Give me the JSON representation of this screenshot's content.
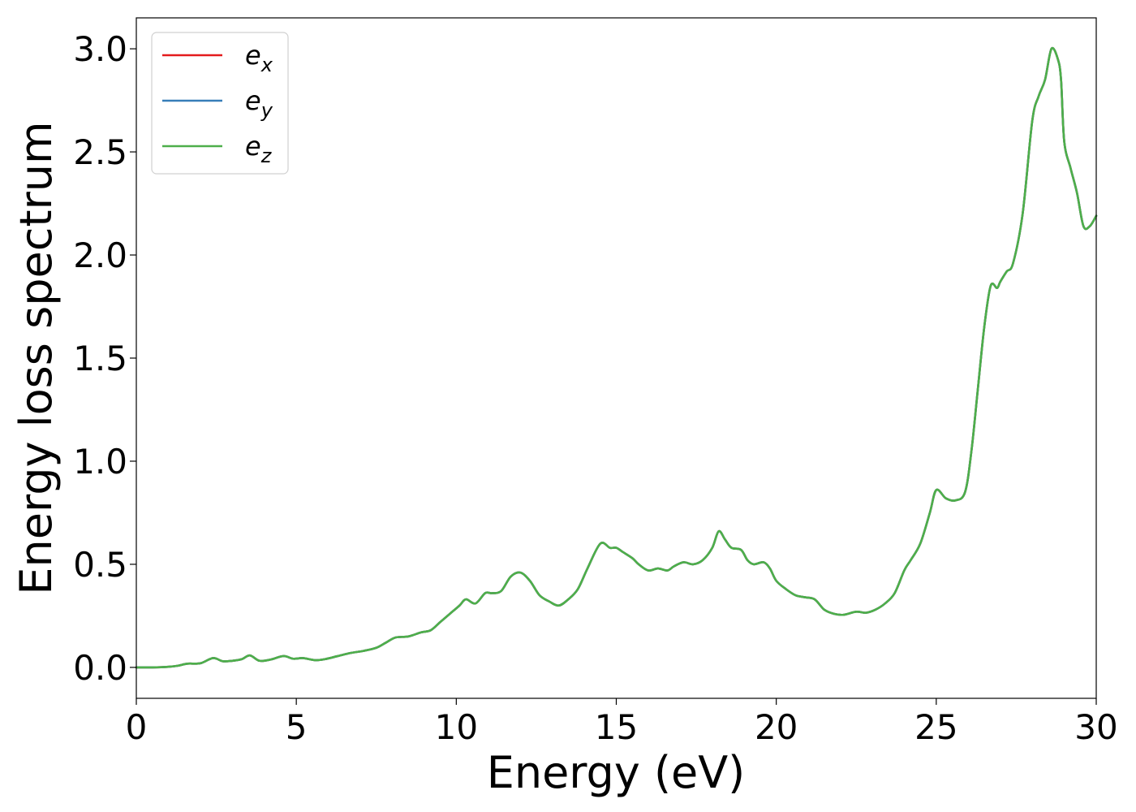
{
  "chart_data": {
    "type": "line",
    "title": "",
    "xlabel": "Energy (eV)",
    "ylabel": "Energy loss spectrum",
    "xlim": [
      0,
      30
    ],
    "ylim": [
      -0.15,
      3.15
    ],
    "xticks": [
      0,
      5,
      10,
      15,
      20,
      25,
      30
    ],
    "xtick_labels": [
      "0",
      "5",
      "10",
      "15",
      "20",
      "25",
      "30"
    ],
    "yticks": [
      0.0,
      0.5,
      1.0,
      1.5,
      2.0,
      2.5,
      3.0
    ],
    "ytick_labels": [
      "0.0",
      "0.5",
      "1.0",
      "1.5",
      "2.0",
      "2.5",
      "3.0"
    ],
    "grid": false,
    "legend": {
      "placement": "top-left"
    },
    "x": [
      0,
      0.5,
      1.0,
      1.3,
      1.6,
      2.0,
      2.4,
      2.7,
      3.0,
      3.3,
      3.55,
      3.85,
      4.2,
      4.6,
      4.9,
      5.2,
      5.6,
      5.9,
      6.3,
      6.7,
      7.1,
      7.5,
      7.8,
      8.1,
      8.5,
      8.9,
      9.2,
      9.5,
      9.8,
      10.1,
      10.3,
      10.6,
      10.9,
      11.1,
      11.4,
      11.7,
      12.0,
      12.3,
      12.6,
      12.9,
      13.2,
      13.5,
      13.8,
      14.1,
      14.5,
      14.8,
      15.0,
      15.2,
      15.5,
      15.7,
      16.0,
      16.3,
      16.6,
      16.8,
      17.1,
      17.4,
      17.7,
      18.0,
      18.2,
      18.4,
      18.6,
      18.9,
      19.1,
      19.3,
      19.6,
      19.8,
      20.0,
      20.3,
      20.6,
      20.9,
      21.2,
      21.5,
      21.8,
      22.1,
      22.5,
      22.8,
      23.1,
      23.4,
      23.7,
      24.0,
      24.2,
      24.5,
      24.8,
      25.0,
      25.3,
      25.6,
      25.9,
      26.1,
      26.3,
      26.5,
      26.7,
      26.9,
      27.0,
      27.2,
      27.4,
      27.7,
      28.0,
      28.2,
      28.4,
      28.6,
      28.8,
      28.9,
      29.0,
      29.2,
      29.4,
      29.6,
      29.8,
      30.0
    ],
    "series": [
      {
        "name": "e_x",
        "color": "#e41a1c",
        "values": [
          0,
          0,
          0.003,
          0.008,
          0.018,
          0.02,
          0.045,
          0.03,
          0.032,
          0.04,
          0.058,
          0.032,
          0.038,
          0.055,
          0.042,
          0.045,
          0.035,
          0.04,
          0.055,
          0.07,
          0.08,
          0.095,
          0.12,
          0.145,
          0.15,
          0.17,
          0.18,
          0.22,
          0.26,
          0.3,
          0.33,
          0.31,
          0.36,
          0.36,
          0.37,
          0.44,
          0.46,
          0.42,
          0.35,
          0.32,
          0.3,
          0.33,
          0.38,
          0.48,
          0.6,
          0.58,
          0.58,
          0.56,
          0.53,
          0.5,
          0.47,
          0.48,
          0.47,
          0.49,
          0.51,
          0.5,
          0.52,
          0.58,
          0.66,
          0.62,
          0.58,
          0.57,
          0.52,
          0.5,
          0.51,
          0.48,
          0.42,
          0.38,
          0.35,
          0.34,
          0.33,
          0.28,
          0.26,
          0.255,
          0.27,
          0.265,
          0.28,
          0.31,
          0.36,
          0.47,
          0.52,
          0.6,
          0.75,
          0.86,
          0.82,
          0.81,
          0.85,
          1.05,
          1.35,
          1.65,
          1.85,
          1.84,
          1.87,
          1.92,
          1.96,
          2.2,
          2.65,
          2.77,
          2.85,
          3.0,
          2.95,
          2.85,
          2.55,
          2.42,
          2.3,
          2.14,
          2.14,
          2.19
        ]
      },
      {
        "name": "e_y",
        "color": "#377eb8",
        "values": [
          0,
          0,
          0.003,
          0.008,
          0.018,
          0.02,
          0.045,
          0.03,
          0.032,
          0.04,
          0.058,
          0.032,
          0.038,
          0.055,
          0.042,
          0.045,
          0.035,
          0.04,
          0.055,
          0.07,
          0.08,
          0.095,
          0.12,
          0.145,
          0.15,
          0.17,
          0.18,
          0.22,
          0.26,
          0.3,
          0.33,
          0.31,
          0.36,
          0.36,
          0.37,
          0.44,
          0.46,
          0.42,
          0.35,
          0.32,
          0.3,
          0.33,
          0.38,
          0.48,
          0.6,
          0.58,
          0.58,
          0.56,
          0.53,
          0.5,
          0.47,
          0.48,
          0.47,
          0.49,
          0.51,
          0.5,
          0.52,
          0.58,
          0.66,
          0.62,
          0.58,
          0.57,
          0.52,
          0.5,
          0.51,
          0.48,
          0.42,
          0.38,
          0.35,
          0.34,
          0.33,
          0.28,
          0.26,
          0.255,
          0.27,
          0.265,
          0.28,
          0.31,
          0.36,
          0.47,
          0.52,
          0.6,
          0.75,
          0.86,
          0.82,
          0.81,
          0.85,
          1.05,
          1.35,
          1.65,
          1.85,
          1.84,
          1.87,
          1.92,
          1.96,
          2.2,
          2.65,
          2.77,
          2.85,
          3.0,
          2.95,
          2.85,
          2.55,
          2.42,
          2.3,
          2.14,
          2.14,
          2.19
        ]
      },
      {
        "name": "e_z",
        "color": "#4daf4a",
        "values": [
          0,
          0,
          0.003,
          0.008,
          0.018,
          0.02,
          0.045,
          0.03,
          0.032,
          0.04,
          0.058,
          0.032,
          0.038,
          0.055,
          0.042,
          0.045,
          0.035,
          0.04,
          0.055,
          0.07,
          0.08,
          0.095,
          0.12,
          0.145,
          0.15,
          0.17,
          0.18,
          0.22,
          0.26,
          0.3,
          0.33,
          0.31,
          0.36,
          0.36,
          0.37,
          0.44,
          0.46,
          0.42,
          0.35,
          0.32,
          0.3,
          0.33,
          0.38,
          0.48,
          0.6,
          0.58,
          0.58,
          0.56,
          0.53,
          0.5,
          0.47,
          0.48,
          0.47,
          0.49,
          0.51,
          0.5,
          0.52,
          0.58,
          0.66,
          0.62,
          0.58,
          0.57,
          0.52,
          0.5,
          0.51,
          0.48,
          0.42,
          0.38,
          0.35,
          0.34,
          0.33,
          0.28,
          0.26,
          0.255,
          0.27,
          0.265,
          0.28,
          0.31,
          0.36,
          0.47,
          0.52,
          0.6,
          0.75,
          0.86,
          0.82,
          0.81,
          0.85,
          1.05,
          1.35,
          1.65,
          1.85,
          1.84,
          1.87,
          1.92,
          1.96,
          2.2,
          2.65,
          2.77,
          2.85,
          3.0,
          2.95,
          2.85,
          2.55,
          2.42,
          2.3,
          2.14,
          2.14,
          2.19
        ]
      }
    ],
    "legend_entries": [
      {
        "base": "e",
        "sub": "x",
        "color": "#e41a1c"
      },
      {
        "base": "e",
        "sub": "y",
        "color": "#377eb8"
      },
      {
        "base": "e",
        "sub": "z",
        "color": "#4daf4a"
      }
    ]
  }
}
